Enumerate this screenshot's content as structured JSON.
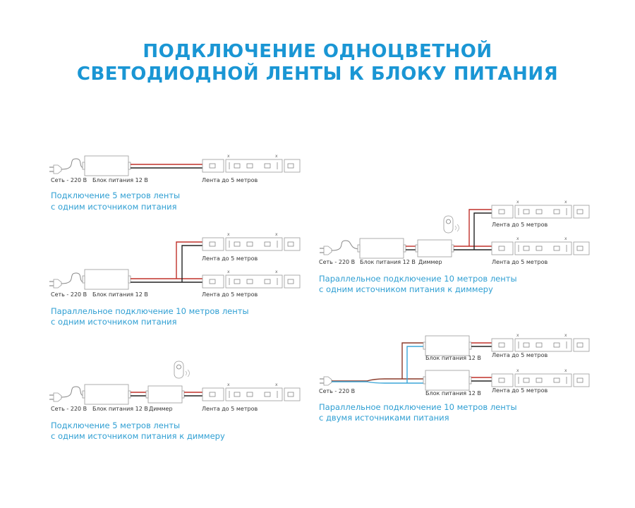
{
  "title": {
    "line1": "ПОДКЛЮЧЕНИЕ ОДНОЦВЕТНОЙ",
    "line2": "СВЕТОДИОДНОЙ ЛЕНТЫ К БЛОКУ ПИТАНИЯ"
  },
  "labels": {
    "mains": "Сеть - 220 В",
    "psu": "Блок питания 12 В",
    "strip": "Лента до 5 метров",
    "dimmer": "Диммер"
  },
  "diagrams": [
    {
      "caption1": "Подключение 5 метров ленты",
      "caption2": "с одним источником питания"
    },
    {
      "caption1": "Параллельное подключение 10 метров ленты",
      "caption2": "с одним источником питания"
    },
    {
      "caption1": "Подключение 5 метров ленты",
      "caption2": "с одним источником питания к диммеру"
    },
    {
      "caption1": "Параллельное подключение 10 метров ленты",
      "caption2": "с одним источником питания к диммеру"
    },
    {
      "caption1": "Параллельное подключение 10 метров ленты",
      "caption2": "с двумя источниками питания"
    }
  ],
  "colors": {
    "accent": "#1a96d4",
    "wire_positive": "#c0302a",
    "wire_negative": "#222222",
    "wire_neutral": "#3aa6d8"
  },
  "icons": [
    "plug-icon",
    "power-supply-icon",
    "dimmer-icon",
    "remote-icon",
    "led-strip-icon"
  ]
}
